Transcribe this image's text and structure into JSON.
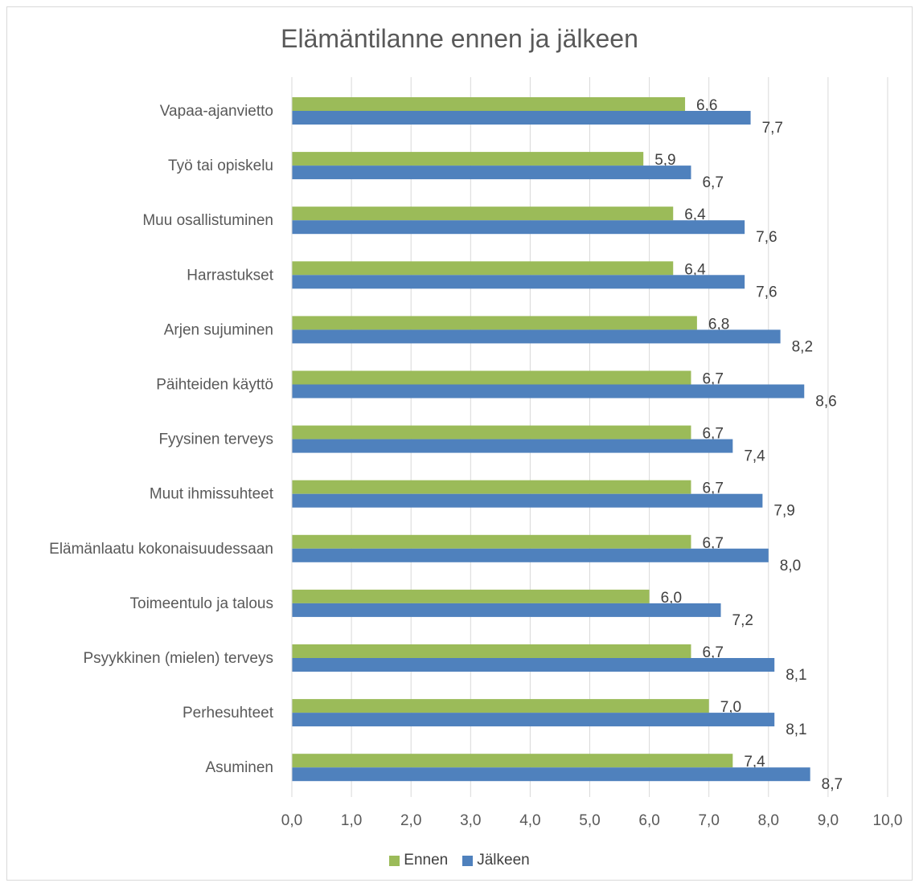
{
  "chart_data": {
    "type": "bar",
    "orientation": "horizontal",
    "title": "Elämäntilanne ennen ja jälkeen",
    "categories": [
      "Vapaa-ajanvietto",
      "Työ tai opiskelu",
      "Muu osallistuminen",
      "Harrastukset",
      "Arjen sujuminen",
      "Päihteiden käyttö",
      "Fyysinen terveys",
      "Muut ihmissuhteet",
      "Elämänlaatu kokonaisuudessaan",
      "Toimeentulo ja talous",
      "Psyykkinen (mielen) terveys",
      "Perhesuhteet",
      "Asuminen"
    ],
    "series": [
      {
        "name": "Ennen",
        "color": "#9bbb59",
        "values": [
          6.6,
          5.9,
          6.4,
          6.4,
          6.8,
          6.7,
          6.7,
          6.7,
          6.7,
          6.0,
          6.7,
          7.0,
          7.4
        ]
      },
      {
        "name": "Jälkeen",
        "color": "#4f81bd",
        "values": [
          7.7,
          6.7,
          7.6,
          7.6,
          8.2,
          8.6,
          7.4,
          7.9,
          8.0,
          7.2,
          8.1,
          8.1,
          8.7
        ]
      }
    ],
    "xlim": [
      0,
      10
    ],
    "xticks": [
      "0,0",
      "1,0",
      "2,0",
      "3,0",
      "4,0",
      "5,0",
      "6,0",
      "7,0",
      "8,0",
      "9,0",
      "10,0"
    ],
    "grid": true,
    "legend_position": "bottom"
  }
}
